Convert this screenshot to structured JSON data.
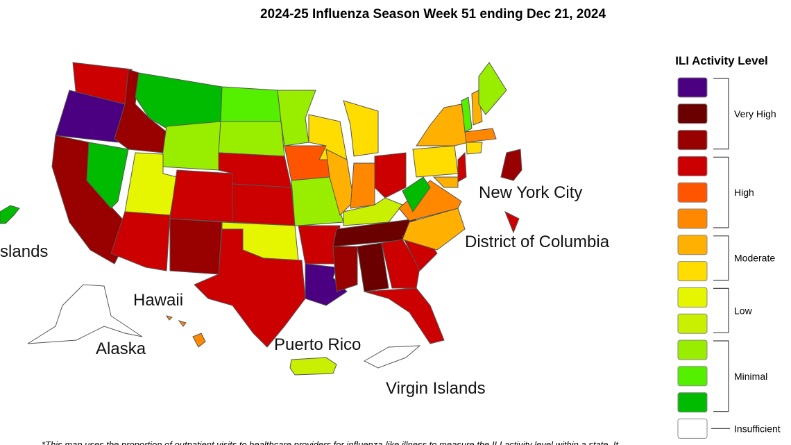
{
  "header": {
    "title": "2024-25 Influenza Season Week 51 ending Dec 21, 2024"
  },
  "map": {
    "labels": [
      "New York City",
      "District of Columbia",
      "Mariana Islands",
      "Hawaii",
      "Alaska",
      "Puerto Rico",
      "Virgin Islands"
    ]
  },
  "legend": {
    "title": "ILI Activity Level",
    "groups": [
      {
        "label": "Very High",
        "colors": [
          "#4b0082",
          "#6b0000",
          "#990000"
        ]
      },
      {
        "label": "High",
        "colors": [
          "#cc0000",
          "#ff5500",
          "#ff8800"
        ]
      },
      {
        "label": "Moderate",
        "colors": [
          "#ffb000",
          "#ffdd00"
        ]
      },
      {
        "label": "Low",
        "colors": [
          "#e6f500",
          "#c8f000"
        ]
      },
      {
        "label": "Minimal",
        "colors": [
          "#99ee00",
          "#55f000",
          "#00bb00"
        ]
      },
      {
        "label": "Insufficient",
        "colors": [
          "#ffffff"
        ]
      }
    ]
  },
  "footnote": "*This map uses the proportion of outpatient visits to healthcare providers for influenza-like illness to measure the ILI activity level within a state. It"
}
